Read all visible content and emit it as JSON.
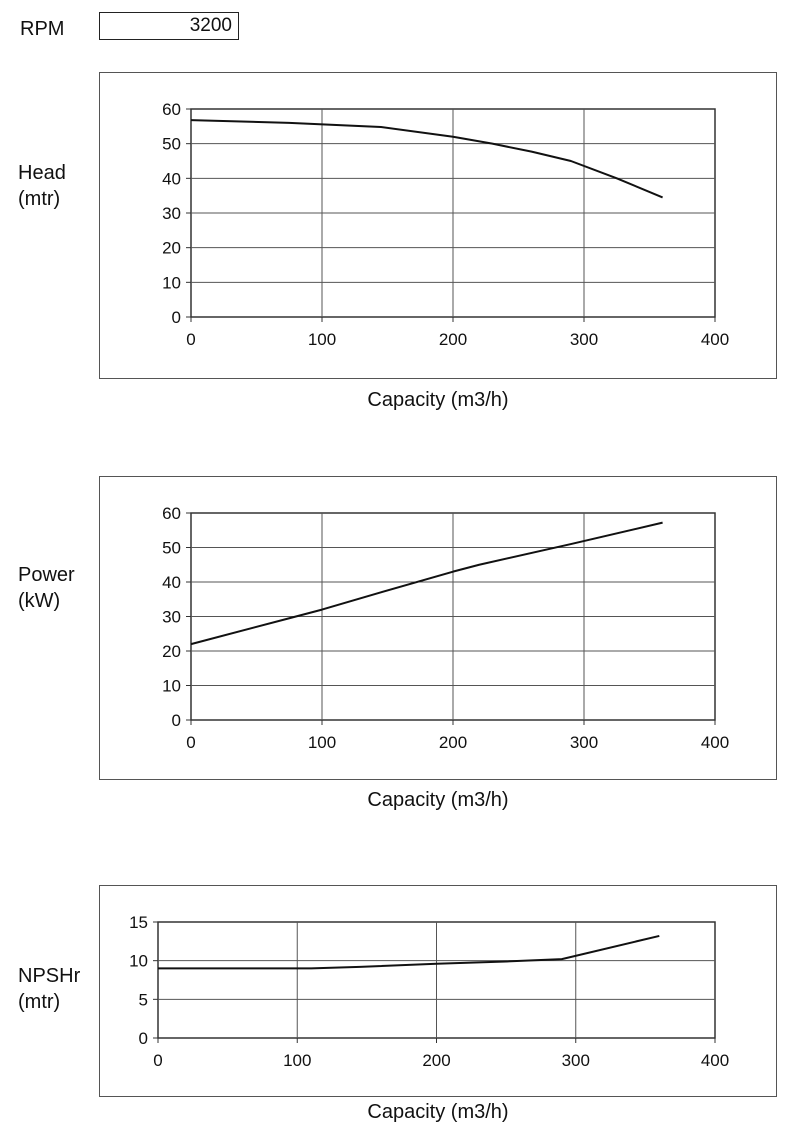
{
  "rpm": {
    "label": "RPM",
    "value": "3200"
  },
  "chart_data": [
    {
      "type": "line",
      "ylabel_lines": [
        "Head",
        "(mtr)"
      ],
      "xlabel": "Capacity (m3/h)",
      "xlim": [
        0,
        400
      ],
      "ylim": [
        0,
        60
      ],
      "xticks": [
        0,
        100,
        200,
        300,
        400
      ],
      "yticks": [
        0,
        10,
        20,
        30,
        40,
        50,
        60
      ],
      "grid": true,
      "series": [
        {
          "name": "Head",
          "x": [
            0,
            75,
            145,
            200,
            230,
            260,
            290,
            325,
            360
          ],
          "y": [
            56.8,
            56,
            54.8,
            52,
            50,
            47.7,
            45,
            40,
            34.5
          ]
        }
      ]
    },
    {
      "type": "line",
      "ylabel_lines": [
        "Power",
        "(kW)"
      ],
      "xlabel": "Capacity (m3/h)",
      "xlim": [
        0,
        400
      ],
      "ylim": [
        0,
        60
      ],
      "xticks": [
        0,
        100,
        200,
        300,
        400
      ],
      "yticks": [
        0,
        10,
        20,
        30,
        40,
        50,
        60
      ],
      "grid": true,
      "series": [
        {
          "name": "Power",
          "x": [
            0,
            75,
            100,
            145,
            200,
            220,
            290,
            360
          ],
          "y": [
            22,
            29.5,
            32,
            37,
            43,
            45,
            51,
            57.2
          ]
        }
      ]
    },
    {
      "type": "line",
      "ylabel_lines": [
        "NPSHr",
        "(mtr)"
      ],
      "xlabel": "Capacity (m3/h)",
      "xlim": [
        0,
        400
      ],
      "ylim": [
        0,
        15
      ],
      "xticks": [
        0,
        100,
        200,
        300,
        400
      ],
      "yticks": [
        0,
        5,
        10,
        15
      ],
      "grid": true,
      "series": [
        {
          "name": "NPSHr",
          "x": [
            0,
            110,
            145,
            200,
            250,
            290,
            360
          ],
          "y": [
            9,
            9,
            9.2,
            9.6,
            9.9,
            10.2,
            13.2
          ]
        }
      ]
    }
  ]
}
